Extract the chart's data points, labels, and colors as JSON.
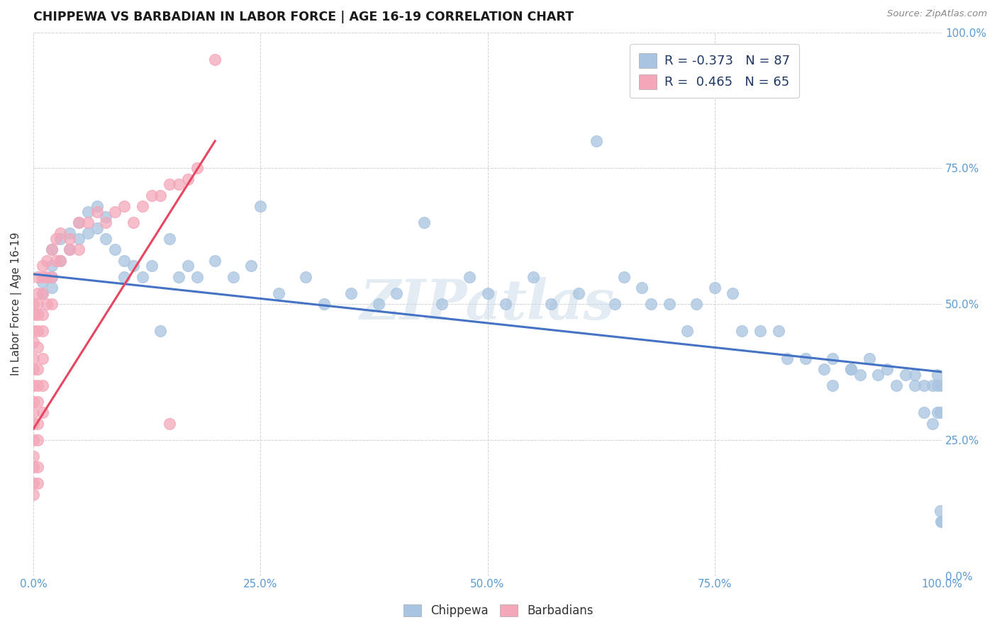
{
  "title": "CHIPPEWA VS BARBADIAN IN LABOR FORCE | AGE 16-19 CORRELATION CHART",
  "source": "Source: ZipAtlas.com",
  "ylabel": "In Labor Force | Age 16-19",
  "xlim": [
    0.0,
    1.0
  ],
  "ylim": [
    0.0,
    1.0
  ],
  "xticks": [
    0.0,
    0.25,
    0.5,
    0.75,
    1.0
  ],
  "yticks": [
    0.0,
    0.25,
    0.5,
    0.75,
    1.0
  ],
  "xtick_labels": [
    "0.0%",
    "25.0%",
    "50.0%",
    "75.0%",
    "100.0%"
  ],
  "ytick_labels": [
    "0.0%",
    "25.0%",
    "50.0%",
    "75.0%",
    "100.0%"
  ],
  "chippewa_color": "#a8c4e0",
  "barbadian_color": "#f4a7b9",
  "chippewa_line_color": "#4472c4",
  "barbadian_line_color": "#e84560",
  "watermark": "ZIPatlas",
  "legend_r_chippewa": "R = -0.373",
  "legend_n_chippewa": "N = 87",
  "legend_r_barbadian": "R =  0.465",
  "legend_n_barbadian": "N = 65",
  "chippewa_x": [
    0.01,
    0.01,
    0.02,
    0.02,
    0.02,
    0.02,
    0.03,
    0.03,
    0.04,
    0.04,
    0.05,
    0.05,
    0.06,
    0.06,
    0.07,
    0.07,
    0.08,
    0.08,
    0.09,
    0.1,
    0.1,
    0.11,
    0.12,
    0.13,
    0.14,
    0.15,
    0.16,
    0.17,
    0.18,
    0.2,
    0.22,
    0.24,
    0.25,
    0.27,
    0.3,
    0.32,
    0.35,
    0.38,
    0.4,
    0.43,
    0.45,
    0.48,
    0.5,
    0.52,
    0.55,
    0.57,
    0.6,
    0.62,
    0.64,
    0.65,
    0.67,
    0.68,
    0.7,
    0.72,
    0.73,
    0.75,
    0.77,
    0.78,
    0.8,
    0.82,
    0.83,
    0.85,
    0.87,
    0.88,
    0.88,
    0.9,
    0.9,
    0.91,
    0.92,
    0.93,
    0.94,
    0.95,
    0.96,
    0.97,
    0.97,
    0.98,
    0.98,
    0.99,
    0.99,
    0.995,
    0.995,
    0.995,
    0.998,
    0.998,
    0.999,
    1.0,
    1.0
  ],
  "chippewa_y": [
    0.54,
    0.52,
    0.6,
    0.57,
    0.55,
    0.53,
    0.62,
    0.58,
    0.63,
    0.6,
    0.65,
    0.62,
    0.67,
    0.63,
    0.68,
    0.64,
    0.66,
    0.62,
    0.6,
    0.58,
    0.55,
    0.57,
    0.55,
    0.57,
    0.45,
    0.62,
    0.55,
    0.57,
    0.55,
    0.58,
    0.55,
    0.57,
    0.68,
    0.52,
    0.55,
    0.5,
    0.52,
    0.5,
    0.52,
    0.65,
    0.5,
    0.55,
    0.52,
    0.5,
    0.55,
    0.5,
    0.52,
    0.8,
    0.5,
    0.55,
    0.53,
    0.5,
    0.5,
    0.45,
    0.5,
    0.53,
    0.52,
    0.45,
    0.45,
    0.45,
    0.4,
    0.4,
    0.38,
    0.4,
    0.35,
    0.38,
    0.38,
    0.37,
    0.4,
    0.37,
    0.38,
    0.35,
    0.37,
    0.37,
    0.35,
    0.3,
    0.35,
    0.28,
    0.35,
    0.37,
    0.3,
    0.35,
    0.3,
    0.12,
    0.1,
    0.1,
    0.35
  ],
  "barbadian_x": [
    0.0,
    0.0,
    0.0,
    0.0,
    0.0,
    0.0,
    0.0,
    0.0,
    0.0,
    0.0,
    0.0,
    0.0,
    0.0,
    0.0,
    0.0,
    0.005,
    0.005,
    0.005,
    0.005,
    0.005,
    0.005,
    0.005,
    0.005,
    0.005,
    0.005,
    0.005,
    0.005,
    0.005,
    0.01,
    0.01,
    0.01,
    0.01,
    0.01,
    0.01,
    0.01,
    0.01,
    0.015,
    0.015,
    0.015,
    0.02,
    0.02,
    0.02,
    0.025,
    0.025,
    0.03,
    0.03,
    0.04,
    0.04,
    0.05,
    0.05,
    0.06,
    0.07,
    0.08,
    0.09,
    0.1,
    0.11,
    0.12,
    0.13,
    0.14,
    0.15,
    0.15,
    0.16,
    0.17,
    0.18,
    0.2
  ],
  "barbadian_y": [
    0.5,
    0.48,
    0.45,
    0.43,
    0.4,
    0.38,
    0.35,
    0.32,
    0.3,
    0.28,
    0.25,
    0.22,
    0.2,
    0.17,
    0.15,
    0.55,
    0.52,
    0.5,
    0.48,
    0.45,
    0.42,
    0.38,
    0.35,
    0.32,
    0.28,
    0.25,
    0.2,
    0.17,
    0.57,
    0.55,
    0.52,
    0.48,
    0.45,
    0.4,
    0.35,
    0.3,
    0.58,
    0.55,
    0.5,
    0.6,
    0.55,
    0.5,
    0.62,
    0.58,
    0.63,
    0.58,
    0.62,
    0.6,
    0.65,
    0.6,
    0.65,
    0.67,
    0.65,
    0.67,
    0.68,
    0.65,
    0.68,
    0.7,
    0.7,
    0.72,
    0.28,
    0.72,
    0.73,
    0.75,
    0.95
  ],
  "barb_trend_x": [
    0.0,
    0.2
  ],
  "barb_trend_y": [
    0.27,
    0.8
  ],
  "chip_trend_x": [
    0.0,
    1.0
  ],
  "chip_trend_y": [
    0.555,
    0.375
  ]
}
